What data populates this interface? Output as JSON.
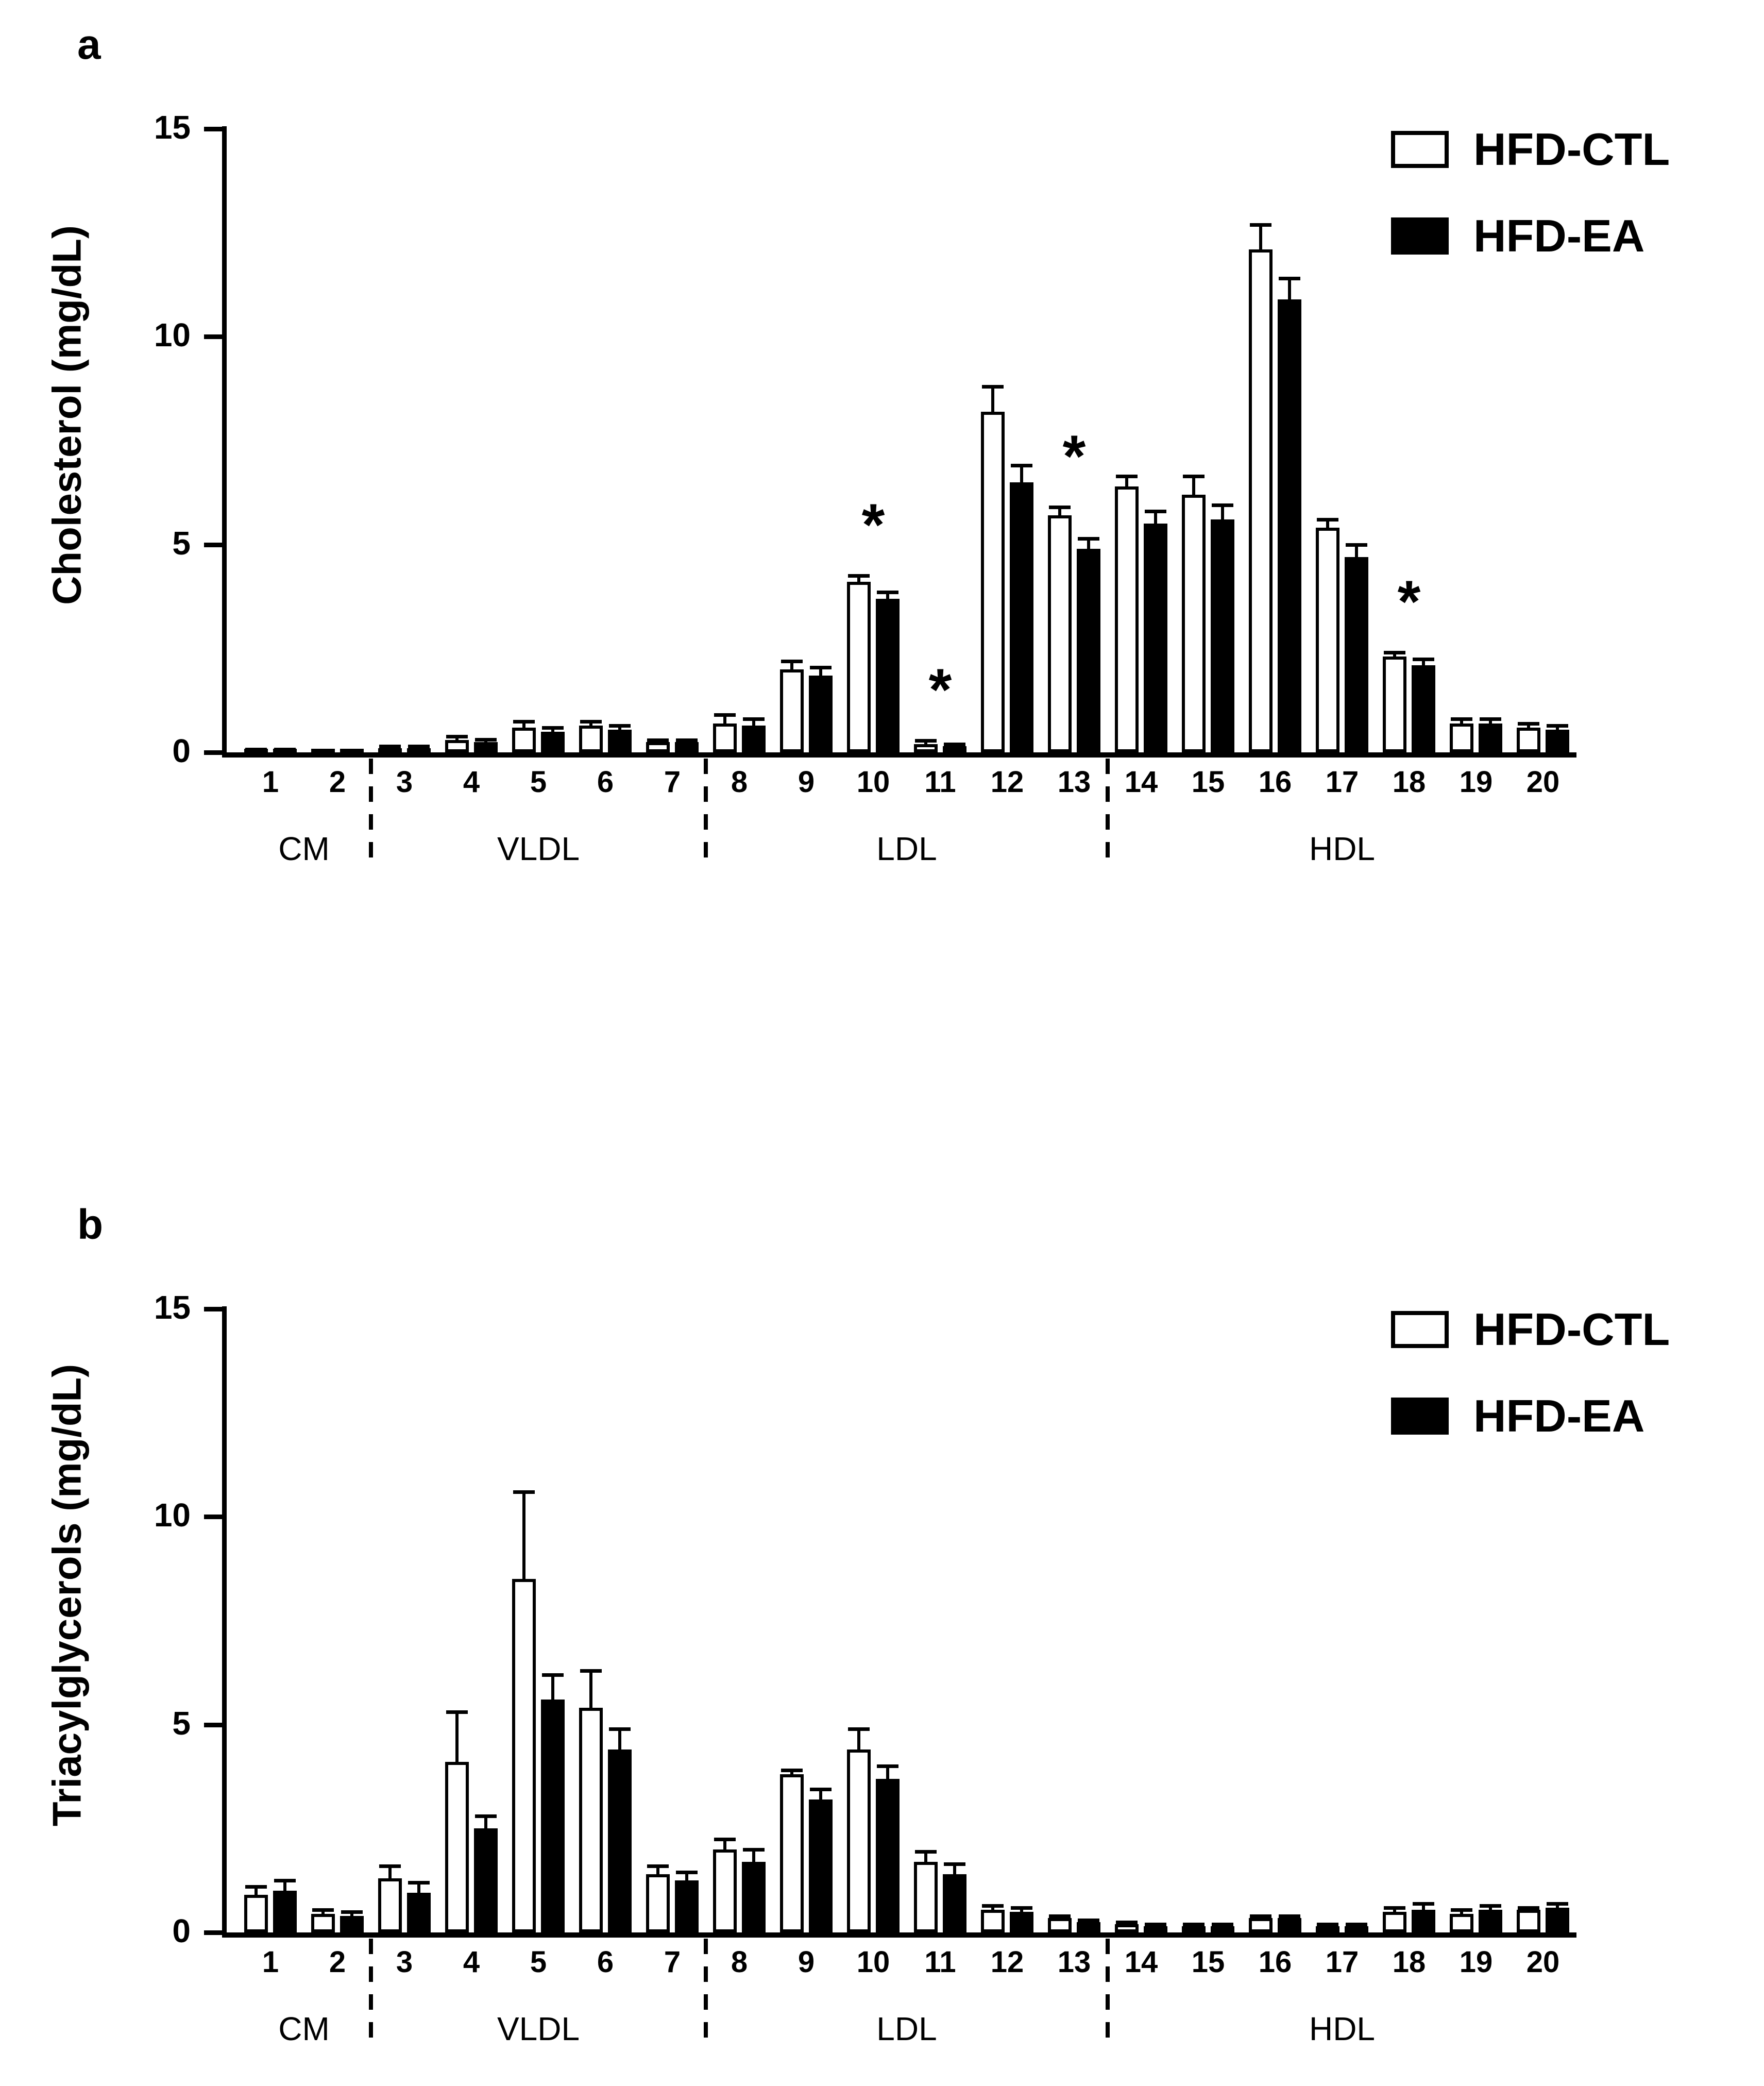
{
  "figure": {
    "background": "#ffffff",
    "axis_color": "#000000",
    "bar_fills": {
      "HFD-CTL": "#ffffff",
      "HFD-EA": "#000000"
    }
  },
  "chart_data": [
    {
      "type": "bar",
      "panel_label": "a",
      "ylabel": "Cholesterol (mg/dL)",
      "xlabel": "",
      "ylim": [
        0,
        15
      ],
      "yticks": [
        0,
        5,
        10,
        15
      ],
      "grid": false,
      "legend_position": "top-right",
      "legend": [
        "HFD-CTL",
        "HFD-EA"
      ],
      "categories": [
        "1",
        "2",
        "3",
        "4",
        "5",
        "6",
        "7",
        "8",
        "9",
        "10",
        "11",
        "12",
        "13",
        "14",
        "15",
        "16",
        "17",
        "18",
        "19",
        "20"
      ],
      "groups": [
        {
          "label": "CM",
          "from": 1,
          "to": 2
        },
        {
          "label": "VLDL",
          "from": 3,
          "to": 7
        },
        {
          "label": "LDL",
          "from": 8,
          "to": 13
        },
        {
          "label": "HDL",
          "from": 14,
          "to": 20
        }
      ],
      "series": [
        {
          "name": "HFD-CTL",
          "fill": "#ffffff",
          "values": [
            0.05,
            0.03,
            0.1,
            0.3,
            0.6,
            0.65,
            0.25,
            0.7,
            2.0,
            4.1,
            0.2,
            8.2,
            5.7,
            6.4,
            6.2,
            12.1,
            5.4,
            2.3,
            0.7,
            0.6
          ],
          "errors": [
            0.03,
            0.02,
            0.05,
            0.08,
            0.15,
            0.1,
            0.05,
            0.2,
            0.2,
            0.15,
            0.08,
            0.6,
            0.2,
            0.25,
            0.45,
            0.6,
            0.2,
            0.1,
            0.1,
            0.1
          ]
        },
        {
          "name": "HFD-EA",
          "fill": "#000000",
          "values": [
            0.05,
            0.03,
            0.1,
            0.25,
            0.5,
            0.55,
            0.25,
            0.65,
            1.85,
            3.7,
            0.15,
            6.5,
            4.9,
            5.5,
            5.6,
            10.9,
            4.7,
            2.1,
            0.7,
            0.55
          ],
          "errors": [
            0.03,
            0.02,
            0.05,
            0.06,
            0.1,
            0.1,
            0.05,
            0.15,
            0.2,
            0.15,
            0.05,
            0.4,
            0.25,
            0.3,
            0.35,
            0.5,
            0.3,
            0.15,
            0.1,
            0.1
          ]
        }
      ],
      "significance": [
        {
          "fraction": 10,
          "symbol": "*"
        },
        {
          "fraction": 11,
          "symbol": "*"
        },
        {
          "fraction": 13,
          "symbol": "*"
        },
        {
          "fraction": 18,
          "symbol": "*"
        }
      ]
    },
    {
      "type": "bar",
      "panel_label": "b",
      "ylabel": "Triacylglycerols (mg/dL)",
      "xlabel": "",
      "ylim": [
        0,
        15
      ],
      "yticks": [
        0,
        5,
        10,
        15
      ],
      "grid": false,
      "legend_position": "top-right",
      "legend": [
        "HFD-CTL",
        "HFD-EA"
      ],
      "categories": [
        "1",
        "2",
        "3",
        "4",
        "5",
        "6",
        "7",
        "8",
        "9",
        "10",
        "11",
        "12",
        "13",
        "14",
        "15",
        "16",
        "17",
        "18",
        "19",
        "20"
      ],
      "groups": [
        {
          "label": "CM",
          "from": 1,
          "to": 2
        },
        {
          "label": "VLDL",
          "from": 3,
          "to": 7
        },
        {
          "label": "LDL",
          "from": 8,
          "to": 13
        },
        {
          "label": "HDL",
          "from": 14,
          "to": 20
        }
      ],
      "series": [
        {
          "name": "HFD-CTL",
          "fill": "#ffffff",
          "values": [
            0.9,
            0.45,
            1.3,
            4.1,
            8.5,
            5.4,
            1.4,
            2.0,
            3.8,
            4.4,
            1.7,
            0.55,
            0.35,
            0.2,
            0.15,
            0.35,
            0.15,
            0.5,
            0.45,
            0.55
          ],
          "errors": [
            0.2,
            0.1,
            0.3,
            1.2,
            2.1,
            0.9,
            0.2,
            0.25,
            0.1,
            0.5,
            0.25,
            0.1,
            0.05,
            0.05,
            0.05,
            0.05,
            0.05,
            0.1,
            0.1,
            0.05
          ]
        },
        {
          "name": "HFD-EA",
          "fill": "#000000",
          "values": [
            1.0,
            0.4,
            0.95,
            2.5,
            5.6,
            4.4,
            1.25,
            1.7,
            3.2,
            3.7,
            1.4,
            0.5,
            0.25,
            0.15,
            0.15,
            0.35,
            0.15,
            0.55,
            0.55,
            0.6
          ],
          "errors": [
            0.25,
            0.1,
            0.25,
            0.3,
            0.6,
            0.5,
            0.2,
            0.3,
            0.25,
            0.3,
            0.25,
            0.1,
            0.05,
            0.05,
            0.05,
            0.05,
            0.05,
            0.15,
            0.1,
            0.1
          ]
        }
      ],
      "significance": []
    }
  ]
}
